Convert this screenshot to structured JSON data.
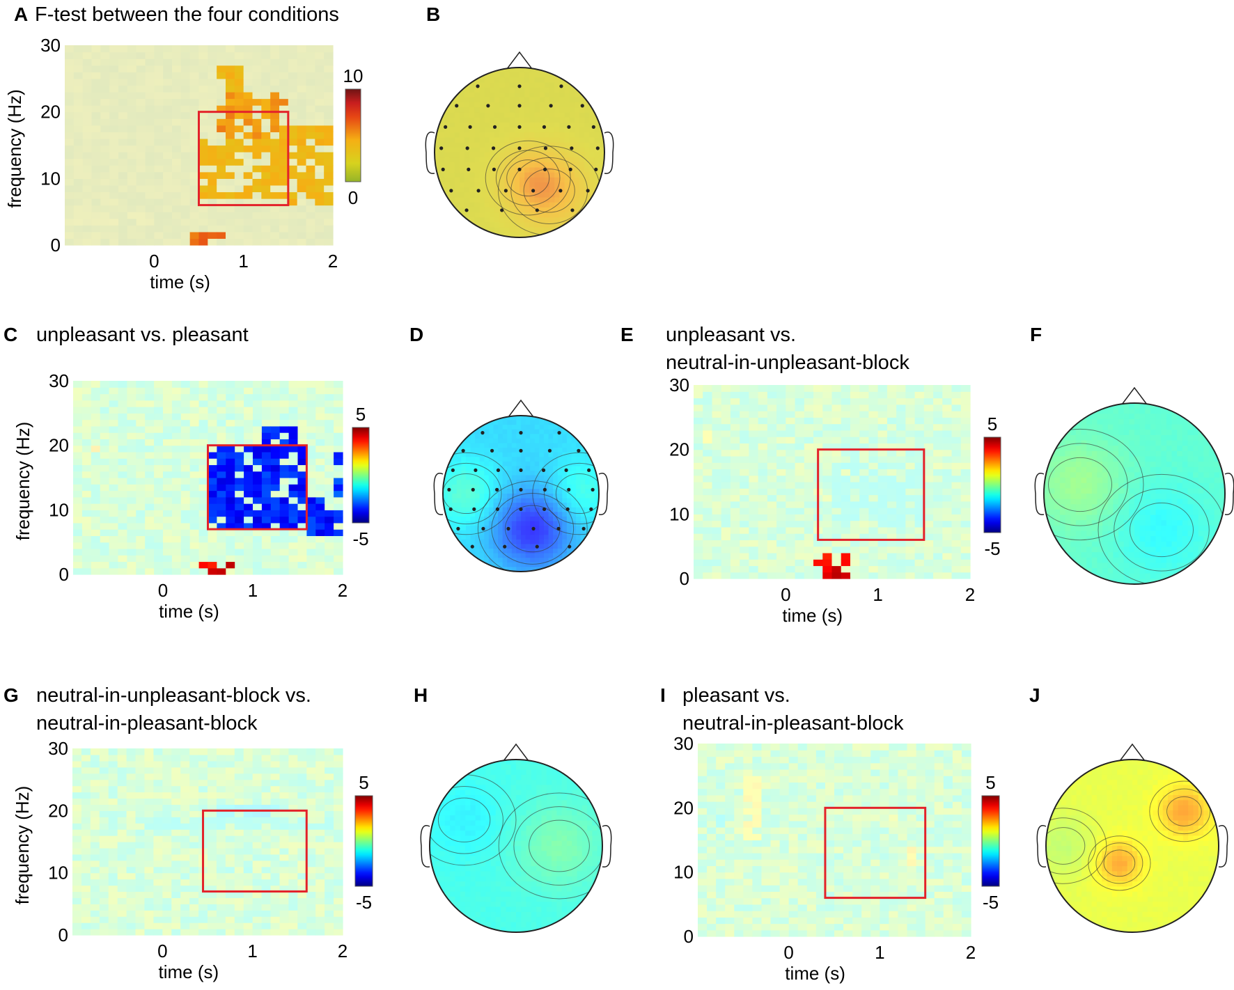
{
  "figure": {
    "panels": [
      {
        "letter": "A",
        "title_lines": [
          "F-test between the four conditions"
        ]
      },
      {
        "letter": "B",
        "title_lines": []
      },
      {
        "letter": "C",
        "title_lines": [
          "unpleasant vs. pleasant"
        ]
      },
      {
        "letter": "D",
        "title_lines": []
      },
      {
        "letter": "E",
        "title_lines": [
          "unpleasant vs.",
          "neutral-in-unpleasant-block"
        ]
      },
      {
        "letter": "F",
        "title_lines": []
      },
      {
        "letter": "G",
        "title_lines": [
          "neutral-in-unpleasant-block vs.",
          "neutral-in-pleasant-block"
        ]
      },
      {
        "letter": "H",
        "title_lines": []
      },
      {
        "letter": "I",
        "title_lines": [
          "pleasant vs.",
          "neutral-in-pleasant-block"
        ]
      },
      {
        "letter": "J",
        "title_lines": []
      }
    ]
  },
  "chart_data": [
    {
      "panel": "A",
      "type": "heatmap",
      "colormap": "hot",
      "xlabel": "time (s)",
      "ylabel": "frequency (Hz)",
      "xticks": [
        0,
        1,
        2
      ],
      "yticks": [
        0,
        10,
        20,
        30
      ],
      "xlim": [
        -1.0,
        2.0
      ],
      "ylim": [
        0,
        30
      ],
      "colorbar": {
        "min": 0,
        "max": 10,
        "labels": [
          "10",
          "0"
        ]
      },
      "roi": {
        "t": [
          0.5,
          1.5
        ],
        "f": [
          6,
          20
        ]
      },
      "background": 0.8,
      "hotspots": [
        {
          "t": [
            0.4,
            0.75
          ],
          "f": [
            0,
            2
          ],
          "v": 6
        },
        {
          "t": [
            0.7,
            1.0
          ],
          "f": [
            23,
            28
          ],
          "v": 4
        },
        {
          "t": [
            0.7,
            1.5
          ],
          "f": [
            16,
            23
          ],
          "v": 5
        },
        {
          "t": [
            0.5,
            1.5
          ],
          "f": [
            7,
            16
          ],
          "v": 4
        },
        {
          "t": [
            1.4,
            2.0
          ],
          "f": [
            6,
            18
          ],
          "v": 4
        },
        {
          "t": [
            -1.0,
            0.0
          ],
          "f": [
            3,
            5
          ],
          "v": 1.5
        }
      ]
    },
    {
      "panel": "C",
      "type": "heatmap",
      "colormap": "jet",
      "xlabel": "time (s)",
      "ylabel": "frequency (Hz)",
      "xticks": [
        0,
        1,
        2
      ],
      "yticks": [
        0,
        10,
        20,
        30
      ],
      "xlim": [
        -1.0,
        2.0
      ],
      "ylim": [
        0,
        30
      ],
      "colorbar": {
        "min": -5,
        "max": 5,
        "labels": [
          "5",
          "-5"
        ]
      },
      "roi": {
        "t": [
          0.5,
          1.6
        ],
        "f": [
          7,
          20
        ]
      },
      "background": 0,
      "hotspots": [
        {
          "t": [
            0.5,
            1.6
          ],
          "f": [
            7,
            20
          ],
          "v": -3.5
        },
        {
          "t": [
            1.1,
            1.5
          ],
          "f": [
            20,
            23
          ],
          "v": -3.5
        },
        {
          "t": [
            1.6,
            2.0
          ],
          "f": [
            6,
            12
          ],
          "v": -3.5
        },
        {
          "t": [
            1.9,
            2.0
          ],
          "f": [
            12,
            20
          ],
          "v": -3.2
        },
        {
          "t": [
            0.4,
            0.85
          ],
          "f": [
            0,
            2
          ],
          "v": 3.8
        },
        {
          "t": [
            -0.8,
            -0.7
          ],
          "f": [
            19,
            21
          ],
          "v": 1.5
        }
      ]
    },
    {
      "panel": "E",
      "type": "heatmap",
      "colormap": "jet",
      "xlabel": "time (s)",
      "ylabel": "",
      "xticks": [
        0,
        1,
        2
      ],
      "yticks": [
        0,
        10,
        20,
        30
      ],
      "xlim": [
        -1.0,
        2.0
      ],
      "ylim": [
        0,
        30
      ],
      "colorbar": {
        "min": -5,
        "max": 5,
        "labels": [
          "5",
          "-5"
        ]
      },
      "roi": {
        "t": [
          0.35,
          1.5
        ],
        "f": [
          6,
          20
        ]
      },
      "background": 0,
      "hotspots": [
        {
          "t": [
            0.35,
            0.65
          ],
          "f": [
            0,
            4
          ],
          "v": 4
        },
        {
          "t": [
            0.5,
            1.5
          ],
          "f": [
            8,
            18
          ],
          "v": -0.9
        },
        {
          "t": [
            -0.9,
            -0.8
          ],
          "f": [
            21,
            23
          ],
          "v": 1.2
        }
      ]
    },
    {
      "panel": "G",
      "type": "heatmap",
      "colormap": "jet",
      "xlabel": "time (s)",
      "ylabel": "frequency (Hz)",
      "xticks": [
        0,
        1,
        2
      ],
      "yticks": [
        0,
        10,
        20,
        30
      ],
      "xlim": [
        -1.0,
        2.0
      ],
      "ylim": [
        0,
        30
      ],
      "colorbar": {
        "min": -5,
        "max": 5,
        "labels": [
          "5",
          "-5"
        ]
      },
      "roi": {
        "t": [
          0.45,
          1.6
        ],
        "f": [
          7,
          20
        ]
      },
      "background": 0,
      "hotspots": [
        {
          "t": [
            0.6,
            1.3
          ],
          "f": [
            19,
            21
          ],
          "v": -1.4
        },
        {
          "t": [
            -0.2,
            1.9
          ],
          "f": [
            17,
            19
          ],
          "v": -0.9
        },
        {
          "t": [
            0.5,
            1.0
          ],
          "f": [
            10,
            11
          ],
          "v": -0.9
        }
      ]
    },
    {
      "panel": "I",
      "type": "heatmap",
      "colormap": "jet",
      "xlabel": "time (s)",
      "ylabel": "",
      "xticks": [
        0,
        1,
        2
      ],
      "yticks": [
        0,
        10,
        20,
        30
      ],
      "xlim": [
        -1.0,
        2.0
      ],
      "ylim": [
        0,
        30
      ],
      "colorbar": {
        "min": -5,
        "max": 5,
        "labels": [
          "5",
          "-5"
        ]
      },
      "roi": {
        "t": [
          0.4,
          1.5
        ],
        "f": [
          6,
          20
        ]
      },
      "background": 0,
      "hotspots": [
        {
          "t": [
            -0.45,
            -0.3
          ],
          "f": [
            15,
            25
          ],
          "v": 1.3
        },
        {
          "t": [
            1.3,
            1.4
          ],
          "f": [
            11,
            14
          ],
          "v": 1.4
        },
        {
          "t": [
            1.1,
            1.2
          ],
          "f": [
            17,
            19
          ],
          "v": 1.0
        },
        {
          "t": [
            -0.8,
            -0.7
          ],
          "f": [
            16,
            19
          ],
          "v": -1.2
        }
      ]
    },
    {
      "panel": "B",
      "type": "topomap",
      "colormap": "hot",
      "clim": [
        0,
        10
      ],
      "electrodes": true,
      "base": 1.8,
      "blobs": [
        {
          "u": 0.35,
          "v": -0.45,
          "amp": 3.0,
          "s": 0.3
        },
        {
          "u": 0.1,
          "v": -0.3,
          "amp": 1.6,
          "s": 0.25
        }
      ]
    },
    {
      "panel": "D",
      "type": "topomap",
      "colormap": "jet",
      "clim": [
        -5,
        5
      ],
      "electrodes": true,
      "base": -1.7,
      "blobs": [
        {
          "u": 0.15,
          "v": -0.45,
          "amp": -2.1,
          "s": 0.35
        },
        {
          "u": -0.7,
          "v": 0.0,
          "amp": 1.0,
          "s": 0.3
        },
        {
          "u": 0.75,
          "v": 0.0,
          "amp": 0.8,
          "s": 0.3
        }
      ]
    },
    {
      "panel": "F",
      "type": "topomap",
      "colormap": "jet",
      "clim": [
        -5,
        5
      ],
      "electrodes": false,
      "base": -0.7,
      "blobs": [
        {
          "u": -0.6,
          "v": 0.1,
          "amp": 0.8,
          "s": 0.35
        },
        {
          "u": 0.3,
          "v": -0.4,
          "amp": -0.6,
          "s": 0.35
        }
      ]
    },
    {
      "panel": "H",
      "type": "topomap",
      "colormap": "jet",
      "clim": [
        -5,
        5
      ],
      "electrodes": false,
      "base": -1.0,
      "blobs": [
        {
          "u": 0.5,
          "v": 0.0,
          "amp": 0.7,
          "s": 0.35
        },
        {
          "u": -0.6,
          "v": 0.3,
          "amp": -0.4,
          "s": 0.3
        }
      ]
    },
    {
      "panel": "J",
      "type": "topomap",
      "colormap": "jet",
      "clim": [
        -5,
        5
      ],
      "electrodes": false,
      "base": 1.0,
      "blobs": [
        {
          "u": 0.6,
          "v": 0.4,
          "amp": 1.4,
          "s": 0.2
        },
        {
          "u": -0.15,
          "v": -0.2,
          "amp": 1.3,
          "s": 0.18
        },
        {
          "u": -0.8,
          "v": 0.0,
          "amp": -0.5,
          "s": 0.25
        }
      ]
    }
  ]
}
